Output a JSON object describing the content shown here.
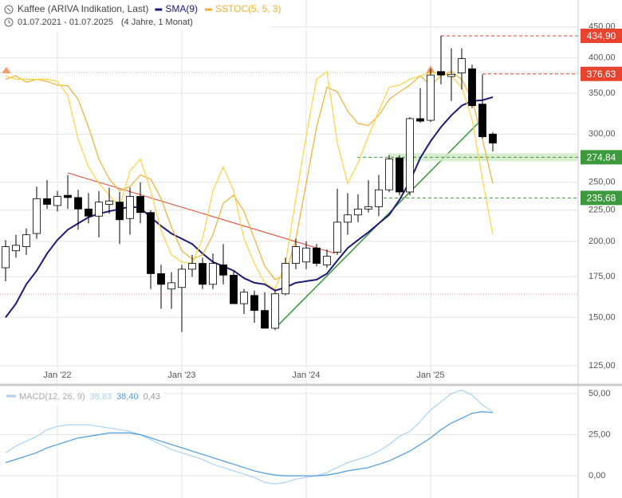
{
  "chart_data": [
    {
      "type": "candlestick",
      "title": "Kaffee (ARIVA Indikation, Last)",
      "subtitle": "01.07.2021 - 01.07.2025",
      "period": "(4 Jahre, 1 Monat)",
      "categories": [
        null,
        null,
        null,
        null,
        null,
        "Jan '22",
        null,
        null,
        null,
        null,
        null,
        null,
        null,
        null,
        null,
        null,
        null,
        "Jan '23",
        null,
        null,
        null,
        null,
        null,
        null,
        null,
        null,
        null,
        null,
        null,
        "Jan '24",
        null,
        null,
        null,
        null,
        null,
        null,
        null,
        null,
        null,
        null,
        null,
        "Jan '25",
        null,
        null,
        null,
        null,
        null,
        null
      ],
      "open": [
        181,
        193,
        196,
        206,
        235,
        229,
        238,
        236,
        226,
        220,
        230,
        232,
        218,
        237,
        223,
        177,
        167,
        168,
        180,
        184,
        170,
        183,
        176,
        158,
        163,
        154,
        144,
        164,
        184,
        185,
        195,
        183,
        192,
        215,
        221,
        226,
        228,
        243,
        274,
        241,
        318,
        316,
        380,
        373,
        378,
        384,
        336,
        300
      ],
      "high": [
        201,
        205,
        210,
        246,
        252,
        242,
        257,
        243,
        240,
        242,
        245,
        241,
        245,
        250,
        225,
        183,
        178,
        183,
        190,
        188,
        191,
        198,
        179,
        167,
        166,
        165,
        166,
        188,
        202,
        200,
        198,
        194,
        244,
        240,
        239,
        252,
        257,
        277,
        277,
        320,
        357,
        384,
        434.9,
        415,
        415,
        390,
        376,
        302
      ],
      "low": [
        172,
        188,
        190,
        202,
        226,
        224,
        226,
        209,
        214,
        203,
        222,
        198,
        205,
        214,
        167,
        155,
        155,
        142,
        175,
        167,
        167,
        170,
        158,
        152,
        147,
        144,
        143,
        163,
        180,
        180,
        182,
        181,
        190,
        205,
        215,
        223,
        220,
        241,
        238,
        238,
        313,
        314,
        362,
        340,
        355,
        331,
        295,
        281
      ],
      "close": [
        196,
        197,
        205,
        235,
        230,
        237,
        236,
        226,
        220,
        232,
        233,
        217,
        237,
        223,
        177,
        170,
        171,
        180,
        184,
        170,
        184,
        176,
        158,
        165,
        154,
        144,
        164,
        184,
        196,
        195,
        184,
        189,
        215,
        221,
        226,
        228,
        243,
        273,
        241,
        318,
        315,
        375,
        375,
        376,
        399,
        334,
        297,
        290
      ],
      "up_color": "#ffffff",
      "down_color": "#000000",
      "series": [
        {
          "name": "SMA(9)",
          "color": "#1e1a78",
          "values": [
            150,
            158,
            170,
            179,
            191,
            201,
            209,
            214,
            219,
            222,
            224,
            226,
            228,
            227,
            219,
            212,
            206,
            202,
            198,
            191,
            185,
            182,
            179,
            174,
            171,
            170,
            166,
            168,
            171,
            172,
            173,
            177,
            186,
            195,
            201,
            207,
            214,
            221,
            234,
            251,
            274,
            292,
            308,
            322,
            334,
            340,
            341,
            345
          ]
        },
        {
          "name": "SSTOC(5, 5, 3)",
          "color": "#ffd23f",
          "signal_color": "#f0b030",
          "values": [
            374,
            369,
            369,
            369,
            369,
            366,
            347,
            294,
            265,
            249,
            238,
            228,
            261,
            273,
            242,
            208,
            190,
            185,
            184,
            202,
            242,
            265,
            242,
            202,
            184,
            171,
            167,
            184,
            235,
            298,
            369,
            380,
            290,
            249,
            269,
            298,
            327,
            358,
            361,
            369,
            374,
            378,
            377,
            374,
            358,
            317,
            253,
            205
          ],
          "signal": [
            369,
            374,
            365,
            369,
            366,
            361,
            360,
            342,
            308,
            273,
            253,
            242,
            246,
            257,
            253,
            235,
            211,
            193,
            187,
            190,
            205,
            231,
            238,
            224,
            202,
            182,
            173,
            176,
            202,
            249,
            308,
            358,
            352,
            327,
            312,
            310,
            322,
            342,
            352,
            361,
            374,
            361,
            374,
            380,
            369,
            342,
            294,
            249
          ]
        }
      ],
      "levels": [
        {
          "value": 434.9,
          "label": "434,90",
          "color": "#e8432e"
        },
        {
          "value": 376.63,
          "label": "376,63",
          "color": "#e8432e"
        },
        {
          "value": 274.84,
          "label": "274,84",
          "color": "#3c9a3c"
        },
        {
          "value": 235.68,
          "label": "235,68",
          "color": "#3c9a3c"
        }
      ],
      "log_scale": true,
      "grid": true,
      "ylim": [
        116.6,
        498
      ],
      "yticks": [
        {
          "value": 125,
          "label": "125,00"
        },
        {
          "value": 150,
          "label": "150,00"
        },
        {
          "value": 175,
          "label": "175,00"
        },
        {
          "value": 200,
          "label": "200,00"
        },
        {
          "value": 225,
          "label": "225,00"
        },
        {
          "value": 250,
          "label": "250,00"
        },
        {
          "value": 300,
          "label": "300,00"
        },
        {
          "value": 350,
          "label": "350,00"
        },
        {
          "value": 400,
          "label": "400,00"
        },
        {
          "value": 450,
          "label": "450,00"
        }
      ]
    },
    {
      "type": "line",
      "legend": "MACD(12, 26, 9)",
      "series": [
        {
          "color": "#a9d2f5",
          "value_label": "38,83",
          "values": [
            14,
            18,
            21,
            24,
            28,
            30,
            31,
            31,
            31,
            30,
            29,
            28,
            27,
            25,
            22,
            19,
            16,
            14,
            12,
            10,
            7,
            5,
            3,
            1,
            -1,
            -4,
            -5,
            -4,
            -2,
            -1,
            0,
            2,
            5,
            8,
            10,
            12,
            15,
            19,
            24,
            27,
            33,
            40,
            45,
            50,
            52,
            49,
            43,
            38.83
          ]
        },
        {
          "color": "#4d9be0",
          "value_label": "38,40",
          "values": [
            8,
            10,
            12,
            14,
            17,
            19,
            21,
            23,
            24,
            25,
            26,
            26,
            26,
            25,
            23,
            21,
            19,
            17,
            15,
            13,
            11,
            9,
            7,
            5,
            3,
            1.5,
            0.5,
            0,
            0,
            0,
            0,
            0.5,
            1.5,
            3,
            4,
            5,
            7,
            9,
            12,
            15,
            19,
            23,
            28,
            32,
            35,
            38,
            39,
            38.4
          ]
        }
      ],
      "histogram": {
        "value": 0.43,
        "label": "0,43"
      },
      "grid": true,
      "ylim": [
        -13.5,
        54.3
      ],
      "yticks": [
        {
          "value": 0,
          "label": "0,00"
        },
        {
          "value": 25,
          "label": "25,00"
        },
        {
          "value": 50,
          "label": "50,00"
        }
      ]
    }
  ]
}
